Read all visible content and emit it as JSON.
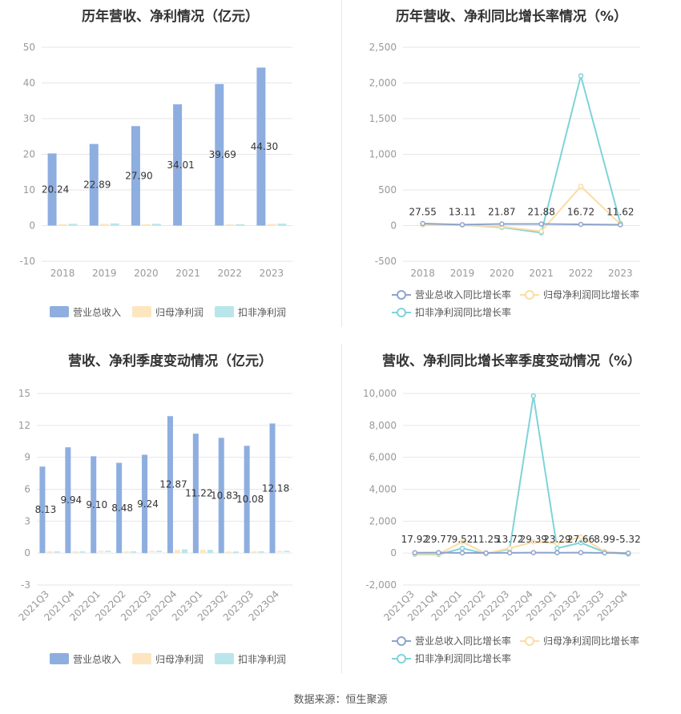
{
  "colors": {
    "revenue": "#8eaee0",
    "net_profit": "#fde6bf",
    "deducted_profit": "#b9e6ea",
    "revenue_growth": "#8ea4cc",
    "net_growth": "#fbdca5",
    "deducted_growth": "#7fd3d9",
    "grid": "#e6e6e6",
    "axis_text": "#999999",
    "label_text": "#333333"
  },
  "source": "数据来源：恒生聚源",
  "chart_data": [
    {
      "id": "annual-revenue-profit",
      "type": "bar",
      "title": "历年营收、净利情况（亿元）",
      "categories": [
        "2018",
        "2019",
        "2020",
        "2021",
        "2022",
        "2023"
      ],
      "ylim": [
        -10,
        50
      ],
      "yticks": [
        -10,
        0,
        10,
        20,
        30,
        40,
        50
      ],
      "tick_decimals": 0,
      "label_decimals": 2,
      "label_series": 0,
      "rotate_x": false,
      "series": [
        {
          "name": "营业总收入",
          "color_key": "revenue",
          "values": [
            20.24,
            22.89,
            27.9,
            34.01,
            39.69,
            44.3
          ]
        },
        {
          "name": "归母净利润",
          "color_key": "net_profit",
          "values": [
            0.4,
            0.5,
            0.4,
            0.0,
            0.35,
            0.45
          ]
        },
        {
          "name": "扣非净利润",
          "color_key": "deducted_profit",
          "values": [
            0.5,
            0.6,
            0.5,
            0.0,
            0.4,
            0.55
          ]
        }
      ],
      "legend": "bottom"
    },
    {
      "id": "annual-growth",
      "type": "line",
      "title": "历年营收、净利同比增长率情况（%）",
      "categories": [
        "2018",
        "2019",
        "2020",
        "2021",
        "2022",
        "2023"
      ],
      "ylim": [
        -500,
        2500
      ],
      "yticks": [
        -500,
        0,
        500,
        1000,
        1500,
        2000,
        2500
      ],
      "tick_decimals": 0,
      "label_series": 0,
      "label_texts": [
        "27.55",
        "13.11",
        "21.87",
        "21.88",
        "16.72",
        "11.62"
      ],
      "rotate_x": false,
      "series": [
        {
          "name": "营业总收入同比增长率",
          "color_key": "revenue_growth",
          "values": [
            27.55,
            13.11,
            21.87,
            21.88,
            16.72,
            11.62
          ]
        },
        {
          "name": "归母净利润同比增长率",
          "color_key": "net_growth",
          "values": [
            10,
            5,
            -15,
            -80,
            550,
            20
          ]
        },
        {
          "name": "扣非净利润同比增长率",
          "color_key": "deducted_growth",
          "values": [
            15,
            8,
            -25,
            -100,
            2100,
            30
          ]
        }
      ],
      "legend": "bottom"
    },
    {
      "id": "quarterly-revenue-profit",
      "type": "bar",
      "title": "营收、净利季度变动情况（亿元）",
      "categories": [
        "2021Q3",
        "2021Q4",
        "2022Q1",
        "2022Q2",
        "2022Q3",
        "2022Q4",
        "2023Q1",
        "2023Q2",
        "2023Q3",
        "2023Q4"
      ],
      "ylim": [
        -3,
        15
      ],
      "yticks": [
        -3,
        0,
        3,
        6,
        9,
        12,
        15
      ],
      "tick_decimals": 0,
      "label_decimals": 2,
      "label_series": 0,
      "rotate_x": true,
      "series": [
        {
          "name": "营业总收入",
          "color_key": "revenue",
          "values": [
            8.13,
            9.94,
            9.1,
            8.48,
            9.24,
            12.87,
            11.22,
            10.83,
            10.08,
            12.18
          ]
        },
        {
          "name": "归母净利润",
          "color_key": "net_profit",
          "values": [
            0.05,
            0.05,
            0.1,
            0.05,
            0.1,
            0.3,
            0.3,
            0.15,
            0.05,
            0.1
          ]
        },
        {
          "name": "扣非净利润",
          "color_key": "deducted_profit",
          "values": [
            0.05,
            0.05,
            0.1,
            0.05,
            0.1,
            0.35,
            0.3,
            0.15,
            0.05,
            0.1
          ]
        }
      ],
      "legend": "bottom"
    },
    {
      "id": "quarterly-growth",
      "type": "line",
      "title": "营收、净利同比增长率季度变动情况（%）",
      "categories": [
        "2021Q3",
        "2021Q4",
        "2022Q1",
        "2022Q2",
        "2022Q3",
        "2022Q4",
        "2023Q1",
        "2023Q2",
        "2023Q3",
        "2023Q4"
      ],
      "ylim": [
        -2000,
        10000
      ],
      "yticks": [
        -2000,
        0,
        2000,
        4000,
        6000,
        8000,
        10000
      ],
      "tick_decimals": 0,
      "label_series": 0,
      "label_texts": [
        "17.92",
        "29.77",
        "9.52",
        "11.25",
        "13.72",
        "29.39",
        "23.29",
        "27.66",
        "8.99",
        "-5.32"
      ],
      "rotate_x": true,
      "series": [
        {
          "name": "营业总收入同比增长率",
          "color_key": "revenue_growth",
          "values": [
            17.92,
            29.77,
            9.52,
            11.25,
            13.72,
            29.39,
            23.29,
            27.66,
            8.99,
            -5.32
          ]
        },
        {
          "name": "归母净利润同比增长率",
          "color_key": "net_growth",
          "values": [
            -50,
            -60,
            700,
            -30,
            300,
            700,
            600,
            1000,
            100,
            -20
          ]
        },
        {
          "name": "扣非净利润同比增长率",
          "color_key": "deducted_growth",
          "values": [
            -80,
            -90,
            300,
            -50,
            250,
            9850,
            300,
            650,
            50,
            -60
          ]
        }
      ],
      "legend": "bottom"
    }
  ]
}
